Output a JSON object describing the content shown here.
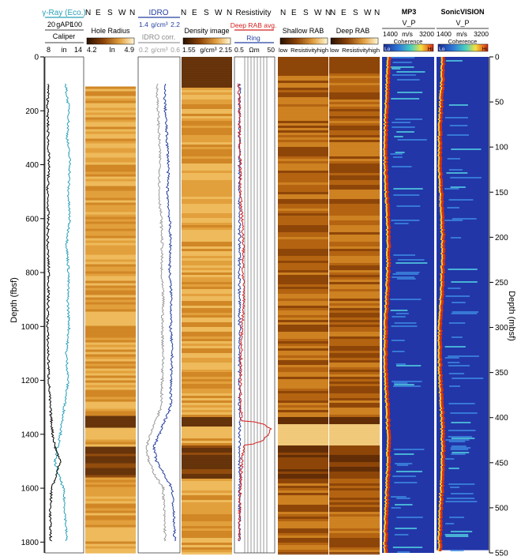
{
  "chart_data": {
    "type": "well-log",
    "left_axis": {
      "label": "Depth (fbsf)",
      "min": 0,
      "max": 1840,
      "ticks": [
        0,
        200,
        400,
        600,
        800,
        1000,
        1200,
        1400,
        1600,
        1800
      ]
    },
    "right_axis": {
      "label": "Depth (mbsf)",
      "min": 0,
      "max": 550,
      "ticks": [
        0,
        50,
        100,
        150,
        200,
        250,
        300,
        350,
        400,
        450,
        500,
        550
      ]
    },
    "tracks": [
      {
        "id": "gamma_caliper",
        "title": "γ-Ray (Eco.)",
        "subtitle": "Caliper",
        "scale_top": [
          "20",
          "gAPI",
          "100"
        ],
        "scale_bottom": [
          "8",
          "in",
          "14"
        ],
        "series": [
          {
            "name": "γ-Ray (Eco.)",
            "color": "#2aa0b8",
            "depth": [
              100,
              200,
              300,
              400,
              500,
              600,
              700,
              800,
              900,
              1000,
              1100,
              1200,
              1300,
              1400,
              1450,
              1500,
              1550,
              1600,
              1700,
              1800
            ],
            "values": [
              62,
              70,
              66,
              72,
              68,
              71,
              65,
              69,
              67,
              70,
              64,
              68,
              60,
              52,
              46,
              40,
              48,
              58,
              62,
              65
            ]
          },
          {
            "name": "Caliper",
            "color": "#000000",
            "depth": [
              100,
              200,
              300,
              400,
              500,
              600,
              700,
              800,
              900,
              1000,
              1100,
              1200,
              1300,
              1400,
              1450,
              1500,
              1550,
              1600,
              1700,
              1800
            ],
            "values": [
              8.5,
              8.4,
              8.5,
              8.6,
              8.4,
              8.5,
              8.4,
              8.6,
              8.5,
              8.4,
              8.5,
              8.6,
              8.8,
              9.2,
              9.6,
              10.4,
              9.8,
              9.0,
              8.8,
              8.9
            ]
          }
        ]
      },
      {
        "id": "hole_radius",
        "title": "Hole Radius",
        "compass": [
          "N",
          "E",
          "S",
          "W",
          "N"
        ],
        "scale_bottom": [
          "4.2",
          "In",
          "4.9"
        ],
        "palette": [
          "#1a0d00",
          "#7a3a05",
          "#c97a1a",
          "#f0c060",
          "#fffbe6"
        ]
      },
      {
        "id": "idro",
        "title": "IDRO",
        "subtitle": "IDRO corr.",
        "scale_top": [
          "1.4",
          "g/cm³",
          "2.2"
        ],
        "scale_bottom": [
          "0.2",
          "g/cm³",
          "0.6"
        ],
        "series": [
          {
            "name": "IDRO",
            "color": "#2540a0",
            "depth": [
              100,
              200,
              300,
              400,
              500,
              600,
              700,
              800,
              900,
              1000,
              1100,
              1200,
              1300,
              1400,
              1450,
              1500,
              1550,
              1600,
              1700,
              1800
            ],
            "values": [
              1.9,
              1.92,
              1.95,
              1.98,
              1.96,
              2.0,
              2.02,
              2.0,
              2.04,
              2.02,
              2.05,
              2.03,
              2.02,
              1.8,
              1.7,
              1.75,
              1.9,
              2.05,
              2.08,
              2.1
            ]
          },
          {
            "name": "IDRO corr.",
            "color": "#9a9a9a",
            "depth": [
              100,
              200,
              300,
              400,
              500,
              600,
              700,
              800,
              900,
              1000,
              1100,
              1200,
              1300,
              1400,
              1450,
              1500,
              1550,
              1600,
              1700,
              1800
            ],
            "values": [
              0.38,
              0.39,
              0.4,
              0.41,
              0.4,
              0.42,
              0.43,
              0.42,
              0.44,
              0.43,
              0.44,
              0.43,
              0.42,
              0.32,
              0.28,
              0.3,
              0.36,
              0.44,
              0.45,
              0.46
            ]
          }
        ]
      },
      {
        "id": "density_image",
        "title": "Density image",
        "compass": [
          "N",
          "E",
          "S",
          "W",
          "N"
        ],
        "scale_bottom": [
          "1.55",
          "g/cm³",
          "2.15"
        ]
      },
      {
        "id": "resistivity",
        "title": "Resistivity",
        "subtitle": "Deep RAB avg.",
        "subtitle2": "Ring",
        "scale_bottom": [
          "0.5",
          "Ωm",
          "50"
        ],
        "series": [
          {
            "name": "Deep RAB avg.",
            "color": "#d42020",
            "depth": [
              100,
              200,
              300,
              400,
              500,
              600,
              700,
              800,
              900,
              1000,
              1100,
              1200,
              1300,
              1350,
              1380,
              1400,
              1440,
              1500,
              1600,
              1700,
              1800
            ],
            "values": [
              0.8,
              0.9,
              0.9,
              1.0,
              1.0,
              1.2,
              1.4,
              1.3,
              1.5,
              1.2,
              1.1,
              1.0,
              1.0,
              1.2,
              30,
              25,
              1.5,
              1.2,
              1.0,
              0.9,
              0.9
            ]
          },
          {
            "name": "Ring",
            "color": "#2540a0",
            "depth": [
              100,
              1800
            ],
            "values": [
              0.9,
              0.9
            ]
          }
        ]
      },
      {
        "id": "shallow_rab",
        "title": "Shallow RAB",
        "compass": [
          "N",
          "E",
          "S",
          "W",
          "N"
        ],
        "scale_bottom": [
          "low",
          "Resistivity",
          "high"
        ]
      },
      {
        "id": "deep_rab",
        "title": "Deep RAB",
        "compass": [
          "N",
          "E",
          "S",
          "W",
          "N"
        ],
        "scale_bottom": [
          "low",
          "Resistivity",
          "high"
        ]
      },
      {
        "id": "mp3",
        "title": "MP3",
        "subtitle": "V_P",
        "scale_top": [
          "1400",
          "m/s",
          "3200"
        ],
        "legend": [
          "Lo",
          "Coherence",
          "Hi"
        ]
      },
      {
        "id": "sonicvision",
        "title": "SonicVISION",
        "subtitle": "V_P",
        "scale_top": [
          "1400",
          "m/s",
          "3200"
        ],
        "legend": [
          "Lo",
          "Coherence",
          "Hi"
        ]
      }
    ]
  }
}
